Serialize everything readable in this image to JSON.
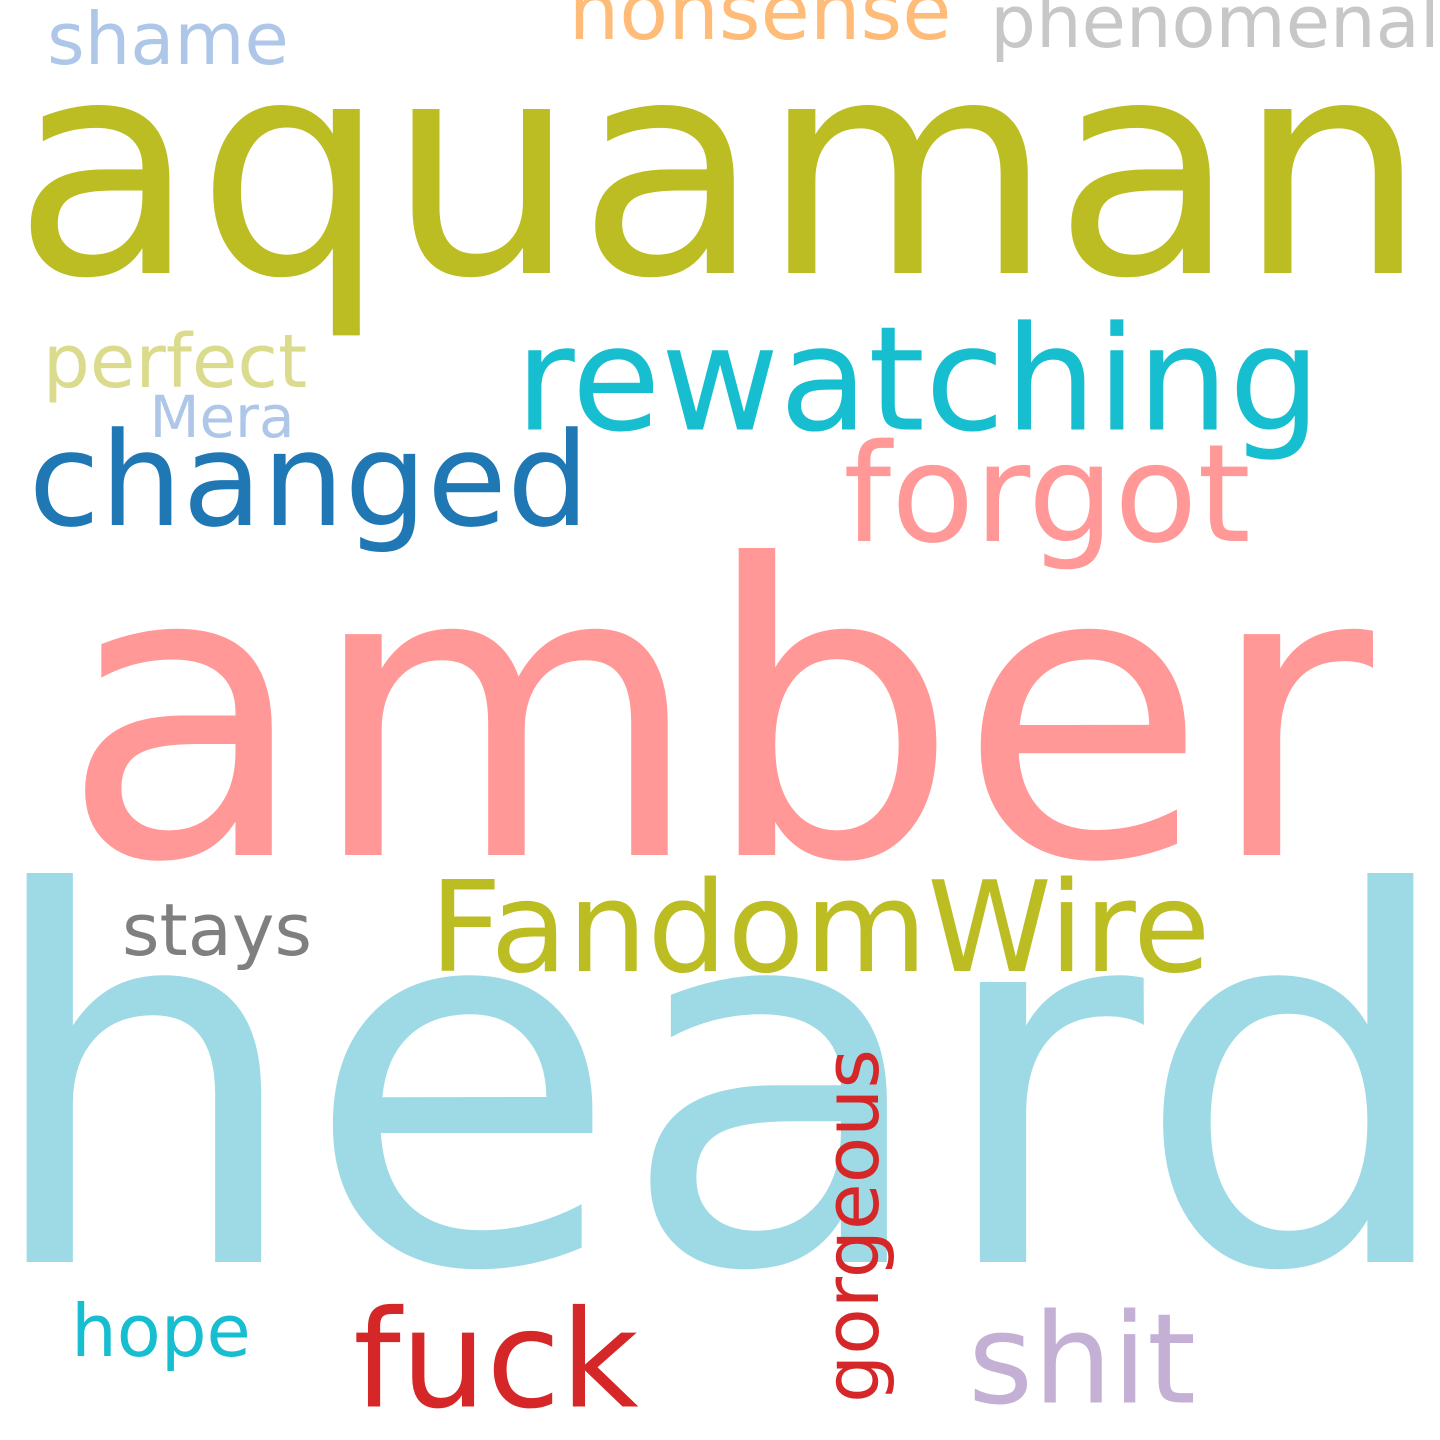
{
  "canvas": {
    "background": "#ffffff"
  },
  "words": [
    {
      "key": "heard",
      "text": "heard",
      "color": "#9edae5"
    },
    {
      "key": "amber",
      "text": "amber",
      "color": "#ff9896"
    },
    {
      "key": "aquaman",
      "text": "aquaman",
      "color": "#bcbd22"
    },
    {
      "key": "rewatching",
      "text": "rewatching",
      "color": "#17becf"
    },
    {
      "key": "changed",
      "text": "changed",
      "color": "#1f77b4"
    },
    {
      "key": "forgot",
      "text": "forgot",
      "color": "#ff9896"
    },
    {
      "key": "fandomwire",
      "text": "FandomWire",
      "color": "#bcbd22"
    },
    {
      "key": "fuck",
      "text": "fuck",
      "color": "#d62728"
    },
    {
      "key": "shit",
      "text": "shit",
      "color": "#c5b0d5"
    },
    {
      "key": "gorgeous",
      "text": "gorgeous",
      "color": "#d62728",
      "orientation": "vertical"
    },
    {
      "key": "nonsense",
      "text": "nonsense",
      "color": "#ffbb78"
    },
    {
      "key": "phenomenal",
      "text": "phenomenal",
      "color": "#c7c7c7"
    },
    {
      "key": "shame",
      "text": "shame",
      "color": "#aec7e8"
    },
    {
      "key": "perfect",
      "text": "perfect",
      "color": "#dbdb8d"
    },
    {
      "key": "mera",
      "text": "Mera",
      "color": "#aec7e8"
    },
    {
      "key": "stays",
      "text": "stays",
      "color": "#7f7f7f"
    },
    {
      "key": "hope",
      "text": "hope",
      "color": "#17becf"
    }
  ]
}
